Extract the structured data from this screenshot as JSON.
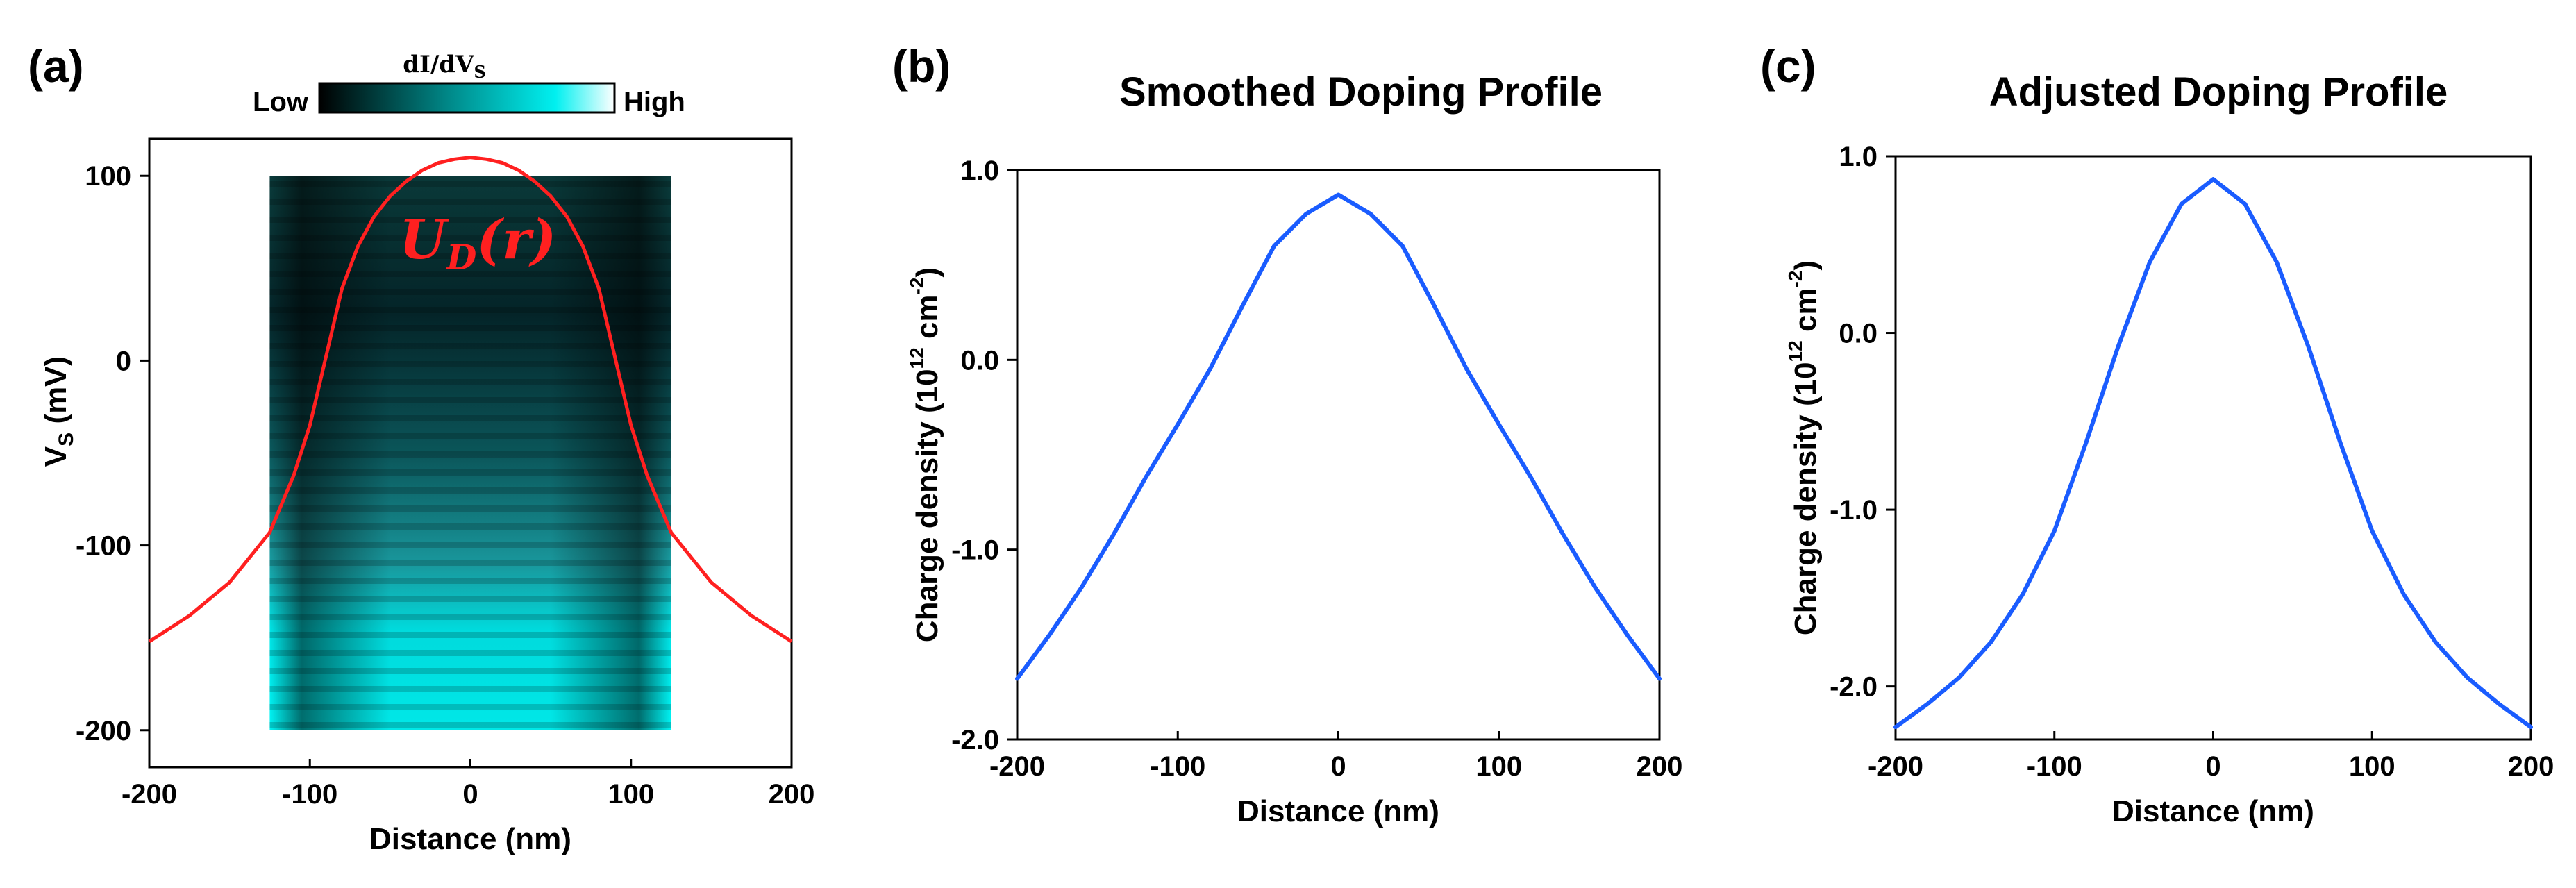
{
  "panels": {
    "a": {
      "label": "(a)"
    },
    "b": {
      "label": "(b)"
    },
    "c": {
      "label": "(c)"
    }
  },
  "colorbar": {
    "title": "dI/dV",
    "title_sub": "S",
    "low": "Low",
    "high": "High",
    "colors": [
      "#000000",
      "#00f0f0",
      "#ffffff"
    ]
  },
  "curve_label": {
    "text": "U",
    "sub": "D",
    "arg": "(r)",
    "color": "#ff2020"
  },
  "chart_data": [
    {
      "type": "heatmap",
      "title": "",
      "xlabel": "Distance (nm)",
      "ylabel_main": "V",
      "ylabel_sub": "S",
      "ylabel_unit": " (mV)",
      "xlim": [
        -200,
        200
      ],
      "ylim": [
        -220,
        120
      ],
      "xticks": [
        -200,
        -100,
        0,
        100,
        200
      ],
      "yticks": [
        -200,
        -100,
        0,
        100
      ],
      "xtick_labels": [
        "-200",
        "-100",
        "0",
        "100",
        "200"
      ],
      "ytick_labels": [
        "-200",
        "-100",
        "0",
        "100"
      ],
      "heatmap_extent": {
        "x": [
          -125,
          125
        ],
        "y": [
          -200,
          100
        ]
      },
      "overlay_curve": {
        "name": "U_D(r)",
        "color": "#ff2020",
        "x": [
          -200,
          -175,
          -150,
          -125,
          -110,
          -100,
          -90,
          -80,
          -70,
          -60,
          -50,
          -40,
          -30,
          -20,
          -10,
          0,
          10,
          20,
          30,
          40,
          50,
          60,
          70,
          80,
          90,
          100,
          110,
          125,
          150,
          175,
          200
        ],
        "y": [
          -152,
          -138,
          -120,
          -93,
          -62,
          -35,
          2,
          39,
          62,
          78,
          89,
          97,
          103,
          107,
          109,
          110,
          109,
          107,
          103,
          97,
          89,
          78,
          62,
          39,
          2,
          -35,
          -62,
          -93,
          -120,
          -138,
          -152
        ]
      }
    },
    {
      "type": "line",
      "title": "Smoothed Doping Profile",
      "xlabel": "Distance (nm)",
      "ylabel": "Charge density (10",
      "ylabel_sup": "12",
      "ylabel_tail": " cm",
      "ylabel_sup2": "-2",
      "ylabel_close": ")",
      "xlim": [
        -200,
        200
      ],
      "ylim": [
        -2.0,
        1.0
      ],
      "xticks": [
        -200,
        -100,
        0,
        100,
        200
      ],
      "xtick_labels": [
        "-200",
        "-100",
        "0",
        "100",
        "200"
      ],
      "yticks": [
        -2.0,
        -1.0,
        0.0,
        1.0
      ],
      "ytick_labels": [
        "-2.0",
        "-1.0",
        "0.0",
        "1.0"
      ],
      "series": [
        {
          "color": "#1a5cff",
          "x": [
            -200,
            -180,
            -160,
            -140,
            -120,
            -100,
            -80,
            -60,
            -40,
            -20,
            0,
            20,
            40,
            60,
            80,
            100,
            120,
            140,
            160,
            180,
            200
          ],
          "y": [
            -1.68,
            -1.45,
            -1.2,
            -0.92,
            -0.62,
            -0.34,
            -0.05,
            0.28,
            0.6,
            0.77,
            0.87,
            0.77,
            0.6,
            0.28,
            -0.05,
            -0.34,
            -0.62,
            -0.92,
            -1.2,
            -1.45,
            -1.68
          ]
        }
      ]
    },
    {
      "type": "line",
      "title": "Adjusted Doping Profile",
      "xlabel": "Distance (nm)",
      "ylabel": "Charge density (10",
      "ylabel_sup": "12",
      "ylabel_tail": " cm",
      "ylabel_sup2": "-2",
      "ylabel_close": ")",
      "xlim": [
        -200,
        200
      ],
      "ylim": [
        -2.3,
        1.0
      ],
      "xticks": [
        -200,
        -100,
        0,
        100,
        200
      ],
      "xtick_labels": [
        "-200",
        "-100",
        "0",
        "100",
        "200"
      ],
      "yticks": [
        -2.0,
        -1.0,
        0.0,
        1.0
      ],
      "ytick_labels": [
        "-2.0",
        "-1.0",
        "0.0",
        "1.0"
      ],
      "series": [
        {
          "color": "#1a5cff",
          "x": [
            -200,
            -180,
            -160,
            -140,
            -120,
            -100,
            -80,
            -60,
            -40,
            -20,
            0,
            20,
            40,
            60,
            80,
            100,
            120,
            140,
            160,
            180,
            200
          ],
          "y": [
            -2.23,
            -2.1,
            -1.95,
            -1.75,
            -1.48,
            -1.12,
            -0.62,
            -0.08,
            0.4,
            0.73,
            0.87,
            0.73,
            0.4,
            -0.08,
            -0.62,
            -1.12,
            -1.48,
            -1.75,
            -1.95,
            -2.1,
            -2.23
          ]
        }
      ]
    }
  ]
}
